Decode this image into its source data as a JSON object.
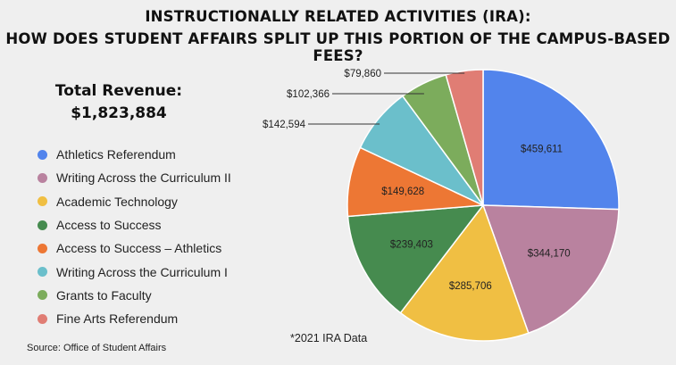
{
  "header": {
    "title_line1": "INSTRUCTIONALLY RELATED ACTIVITIES (IRA):",
    "title_line2": "HOW DOES STUDENT AFFAIRS SPLIT UP THIS PORTION OF THE CAMPUS-BASED FEES?"
  },
  "summary": {
    "revenue_label": "Total Revenue:",
    "revenue_value": "$1,823,884"
  },
  "footnote": "*2021 IRA Data",
  "source": "Source: Office of Student Affairs",
  "chart_data": {
    "type": "pie",
    "title": "How does Student Affairs split up this portion of the campus-based fees?",
    "start": "12 o'clock, clockwise",
    "legend_position": "left",
    "slices": [
      {
        "name": "Athletics Referendum",
        "value": 459611,
        "label": "$459,611",
        "color": "#5284ec"
      },
      {
        "name": "Writing Across the Curriculum II",
        "value": 344170,
        "label": "$344,170",
        "color": "#b9829f"
      },
      {
        "name": "Academic Technology",
        "value": 285706,
        "label": "$285,706",
        "color": "#f0bf43"
      },
      {
        "name": "Access to Success",
        "value": 239403,
        "label": "$239,403",
        "color": "#468b4f"
      },
      {
        "name": "Access to Success – Athletics",
        "value": 149628,
        "label": "$149,628",
        "color": "#ed7734"
      },
      {
        "name": "Writing Across the Curriculum I",
        "value": 142594,
        "label": "$142,594",
        "color": "#6bbfcb"
      },
      {
        "name": "Grants to Faculty",
        "value": 102366,
        "label": "$102,366",
        "color": "#7cac5c"
      },
      {
        "name": "Fine Arts Referendum",
        "value": 79860,
        "label": "$79,860",
        "color": "#e07d74"
      }
    ]
  }
}
